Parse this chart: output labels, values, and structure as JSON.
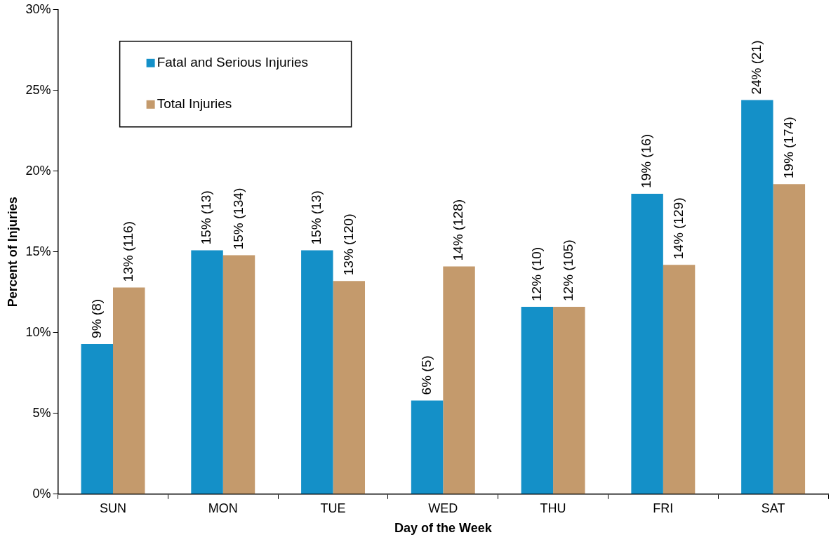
{
  "chart_data": {
    "type": "bar",
    "xlabel": "Day of the Week",
    "ylabel": "Percent of Injuries",
    "categories": [
      "SUN",
      "MON",
      "TUE",
      "WED",
      "THU",
      "FRI",
      "SAT"
    ],
    "series": [
      {
        "name": "Fatal and Serious Injuries",
        "color": "#1490c8",
        "values": [
          9.3,
          15.1,
          15.1,
          5.8,
          11.6,
          18.6,
          24.4
        ],
        "value_labels": [
          "9% (8)",
          "15% (13)",
          "15% (13)",
          "6% (5)",
          "12% (10)",
          "19% (16)",
          "24% (21)"
        ]
      },
      {
        "name": "Total Injuries",
        "color": "#c49a6c",
        "values": [
          12.8,
          14.8,
          13.2,
          14.1,
          11.6,
          14.2,
          19.2
        ],
        "value_labels": [
          "13% (116)",
          "15% (134)",
          "13% (120)",
          "14% (128)",
          "12% (105)",
          "14% (129)",
          "19% (174)"
        ]
      }
    ],
    "ylim": [
      0,
      30
    ],
    "yticks": [
      {
        "value": 0,
        "label": "0%"
      },
      {
        "value": 5,
        "label": "5%"
      },
      {
        "value": 10,
        "label": "10%"
      },
      {
        "value": 15,
        "label": "15%"
      },
      {
        "value": 20,
        "label": "20%"
      },
      {
        "value": 25,
        "label": "25%"
      },
      {
        "value": 30,
        "label": "30%"
      }
    ],
    "grid": false,
    "legend": "top left"
  }
}
